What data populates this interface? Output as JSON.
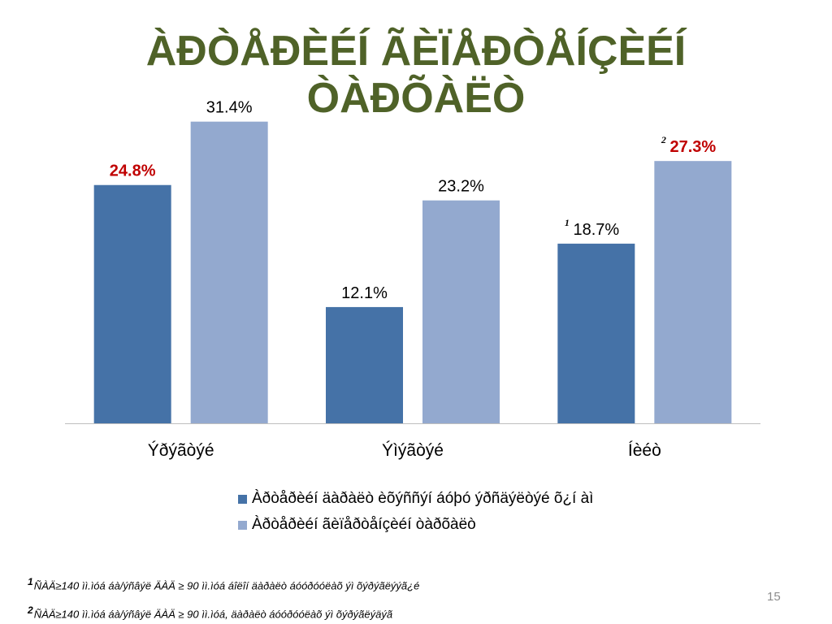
{
  "slide": {
    "title_line1": "ÀÐÒÅÐÈÉÍ ÃÈÏÅÐÒÅÍÇÈÉÍ",
    "title_line2": "ÒÀÐÕÀËÒ",
    "page_number": "15",
    "footnotes": [
      {
        "mark": "1",
        "text": "ÑÀÄ≥140 ìì.ìóá áà/ýñâýë ÄÀÄ ≥ 90 ìì.ìóá áîëîí äàðàëò áóóðóóëàõ ýì õýðýãëýýã¿é"
      },
      {
        "mark": "2",
        "text": "ÑÀÄ≥140 ìì.ìóá áà/ýñâýë ÄÀÄ ≥ 90 ìì.ìóá, äàðàëò áóóðóóëàõ ýì õýðýãëýäýã"
      }
    ]
  },
  "chart_data": {
    "type": "bar",
    "categories": [
      "Ýðýãòýé",
      "Ýìýãòýé",
      "Íèéò"
    ],
    "series": [
      {
        "name": "Àðòåðèéí äàðàëò èõýññýí áóþó ýðñäýëòýé õ¿í àì",
        "color": "#4572a7",
        "values": [
          24.8,
          12.1,
          18.7
        ],
        "labels": [
          "24.8%",
          "12.1%",
          "18.7%"
        ]
      },
      {
        "name": "Àðòåðèéí ãèïåðòåíçèéí òàðõàëò",
        "color": "#93a9cf",
        "values": [
          31.4,
          23.2,
          27.3
        ],
        "labels": [
          "31.4%",
          "23.2%",
          "27.3%"
        ]
      }
    ],
    "highlighted_labels": [
      "24.8%",
      "27.3%"
    ],
    "highlight_color": "#c00000",
    "label_markers": [
      {
        "series": 0,
        "index": 2,
        "mark": "1"
      },
      {
        "series": 1,
        "index": 2,
        "mark": "2"
      }
    ],
    "ylim": [
      0,
      40
    ],
    "grid": false,
    "legend_position": "bottom"
  }
}
